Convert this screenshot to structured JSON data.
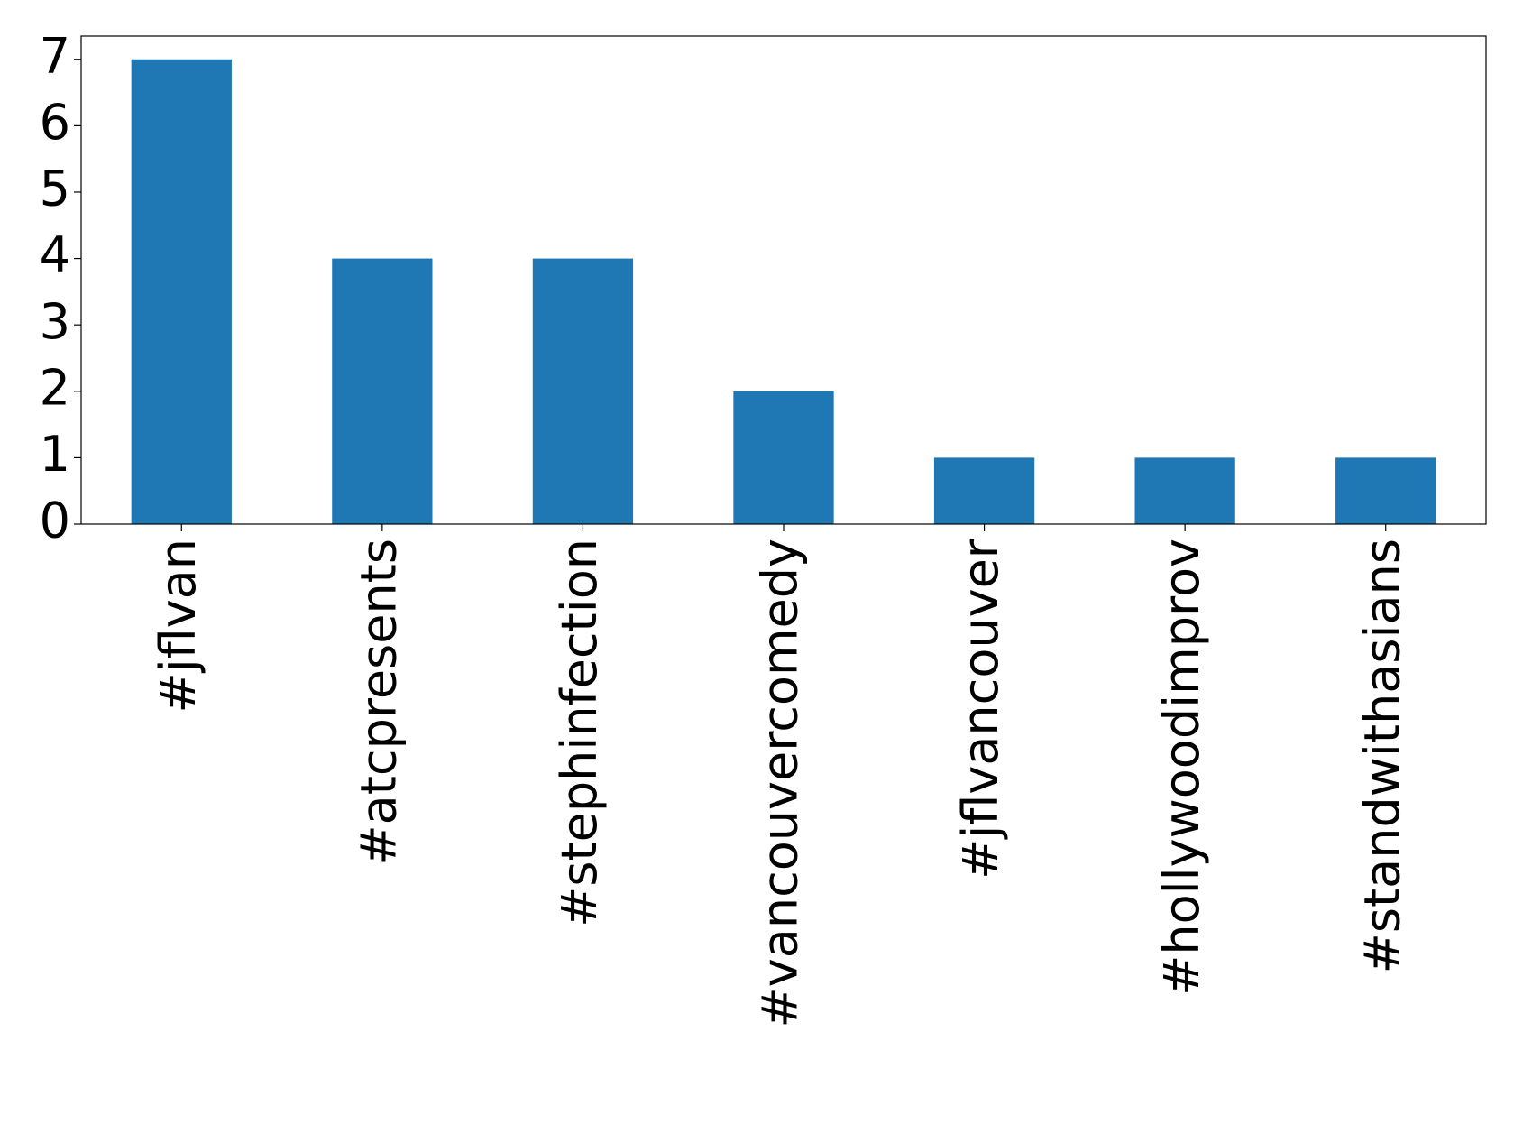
{
  "chart_data": {
    "type": "bar",
    "categories": [
      "#jflvan",
      "#atcpresents",
      "#stephinfection",
      "#vancouvercomedy",
      "#jflvancouver",
      "#hollywoodimprov",
      "#standwithasians"
    ],
    "values": [
      7,
      4,
      4,
      2,
      1,
      1,
      1
    ],
    "color": "#1f77b4",
    "ylim": [
      0,
      7.35
    ],
    "yticks": [
      0,
      1,
      2,
      3,
      4,
      5,
      6,
      7
    ],
    "grid": false
  }
}
